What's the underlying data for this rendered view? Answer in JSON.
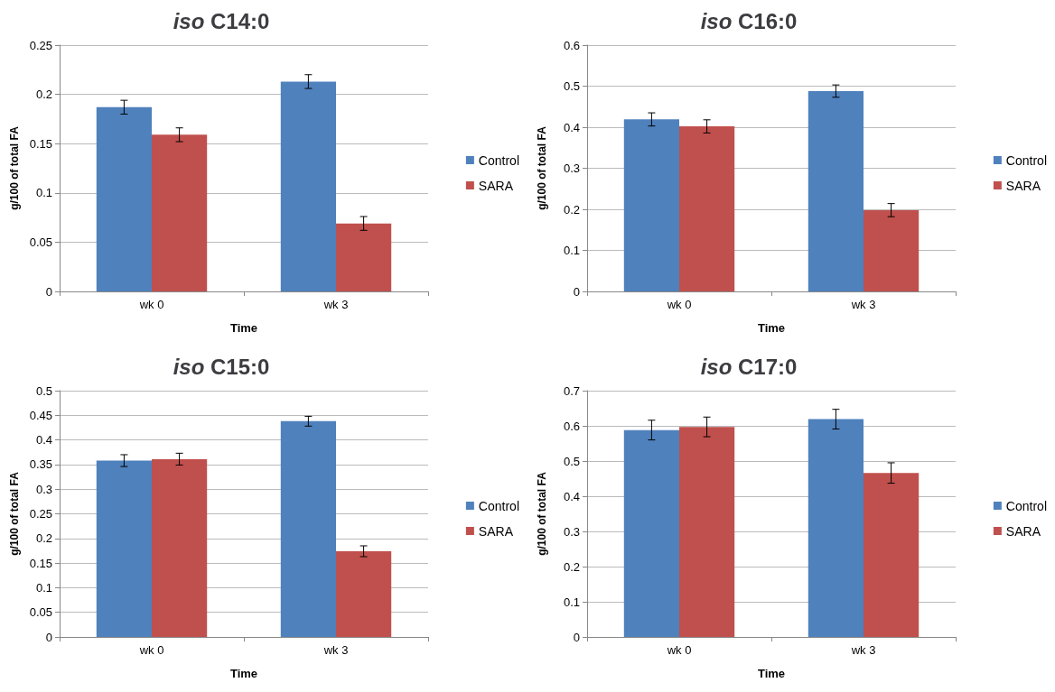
{
  "chart_data": [
    {
      "type": "bar",
      "title": "iso C14:0",
      "xlabel": "Time",
      "ylabel": "g/100 of total FA",
      "categories": [
        "wk 0",
        "wk 3"
      ],
      "series": [
        {
          "name": "Control",
          "color": "#4f81bd",
          "values": [
            0.187,
            0.213
          ],
          "errors": [
            0.007,
            0.007
          ]
        },
        {
          "name": "SARA",
          "color": "#c0504d",
          "values": [
            0.159,
            0.069
          ],
          "errors": [
            0.007,
            0.007
          ]
        }
      ],
      "ylim": [
        0,
        0.25
      ],
      "yticks": [
        0,
        0.05,
        0.1,
        0.15,
        0.2,
        0.25
      ],
      "grid": "y",
      "legend": "right"
    },
    {
      "type": "bar",
      "title": "iso C16:0",
      "xlabel": "Time",
      "ylabel": "g/100 of total FA",
      "categories": [
        "wk 0",
        "wk 3"
      ],
      "series": [
        {
          "name": "Control",
          "color": "#4f81bd",
          "values": [
            0.419,
            0.488
          ],
          "errors": [
            0.016,
            0.015
          ]
        },
        {
          "name": "SARA",
          "color": "#c0504d",
          "values": [
            0.402,
            0.198
          ],
          "errors": [
            0.016,
            0.016
          ]
        }
      ],
      "ylim": [
        0,
        0.6
      ],
      "yticks": [
        0,
        0.1,
        0.2,
        0.3,
        0.4,
        0.5,
        0.6
      ],
      "grid": "y",
      "legend": "right"
    },
    {
      "type": "bar",
      "title": "iso C15:0",
      "xlabel": "Time",
      "ylabel": "g/100 of total FA",
      "categories": [
        "wk 0",
        "wk 3"
      ],
      "series": [
        {
          "name": "Control",
          "color": "#4f81bd",
          "values": [
            0.358,
            0.438
          ],
          "errors": [
            0.012,
            0.01
          ]
        },
        {
          "name": "SARA",
          "color": "#c0504d",
          "values": [
            0.361,
            0.174
          ],
          "errors": [
            0.012,
            0.011
          ]
        }
      ],
      "ylim": [
        0,
        0.5
      ],
      "yticks": [
        0,
        0.05,
        0.1,
        0.15,
        0.2,
        0.25,
        0.3,
        0.35,
        0.4,
        0.45,
        0.5
      ],
      "grid": "y",
      "legend": "right"
    },
    {
      "type": "bar",
      "title": "iso C17:0",
      "xlabel": "Time",
      "ylabel": "g/100 of total FA",
      "categories": [
        "wk 0",
        "wk 3"
      ],
      "series": [
        {
          "name": "Control",
          "color": "#4f81bd",
          "values": [
            0.588,
            0.619
          ],
          "errors": [
            0.028,
            0.028
          ]
        },
        {
          "name": "SARA",
          "color": "#c0504d",
          "values": [
            0.597,
            0.466
          ],
          "errors": [
            0.028,
            0.029
          ]
        }
      ],
      "ylim": [
        0,
        0.7
      ],
      "yticks": [
        0,
        0.1,
        0.2,
        0.3,
        0.4,
        0.5,
        0.6,
        0.7
      ],
      "grid": "y",
      "legend": "right"
    }
  ]
}
